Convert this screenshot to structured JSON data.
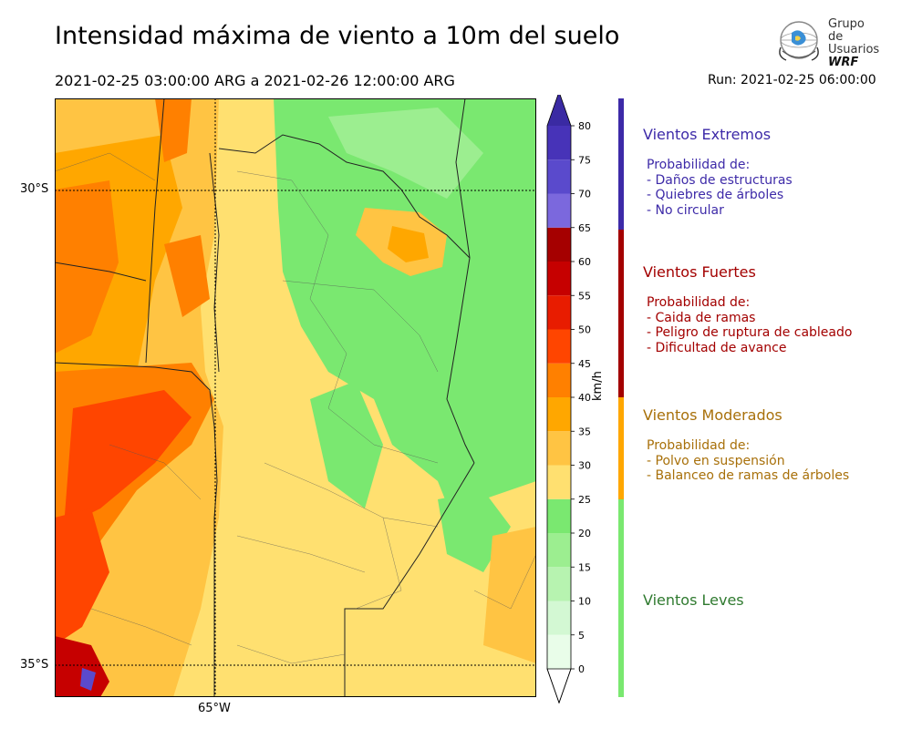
{
  "header": {
    "title": "Intensidad máxima de viento a 10m del suelo",
    "period": "2021-02-25 03:00:00 ARG  a  2021-02-26 12:00:00 ARG",
    "run": "Run: 2021-02-25 06:00:00"
  },
  "logo": {
    "line1": "Grupo de",
    "line2": "Usuarios",
    "line3": "WRF"
  },
  "map": {
    "lat_labels": [
      "30°S",
      "35°S"
    ],
    "lon_labels": [
      "65°W"
    ]
  },
  "colorbar": {
    "unit": "km/h",
    "ticks": [
      "0",
      "5",
      "10",
      "15",
      "20",
      "25",
      "30",
      "35",
      "40",
      "45",
      "50",
      "55",
      "60",
      "65",
      "70",
      "75",
      "80"
    ],
    "colors": [
      "#e9fde9",
      "#d3f8d3",
      "#b7f3b0",
      "#9cee90",
      "#7ae870",
      "#ffe070",
      "#ffc443",
      "#ffa700",
      "#ff8000",
      "#ff4500",
      "#e81c00",
      "#c60000",
      "#a50000",
      "#7b68dd",
      "#5a4acc",
      "#4733b8",
      "#3a2aa3"
    ]
  },
  "categories": [
    {
      "title": "Vientos Extremos",
      "color": "#3d2aa8",
      "desc": [
        "Probabilidad de:",
        "- Daños de estructuras",
        "- Quiebres de árboles",
        "- No circular"
      ]
    },
    {
      "title": "Vientos Fuertes",
      "color": "#a30000",
      "desc": [
        "Probabilidad de:",
        "- Caida de ramas",
        "- Peligro de ruptura de cableado",
        "- Dificultad de avance"
      ]
    },
    {
      "title": "Vientos Moderados",
      "color": "#a8700a",
      "desc": [
        "Probabilidad de:",
        "- Polvo en suspensión",
        "- Balanceo de ramas de árboles"
      ]
    },
    {
      "title": "Vientos Leves",
      "color": "#2f7a2f",
      "desc": []
    }
  ]
}
